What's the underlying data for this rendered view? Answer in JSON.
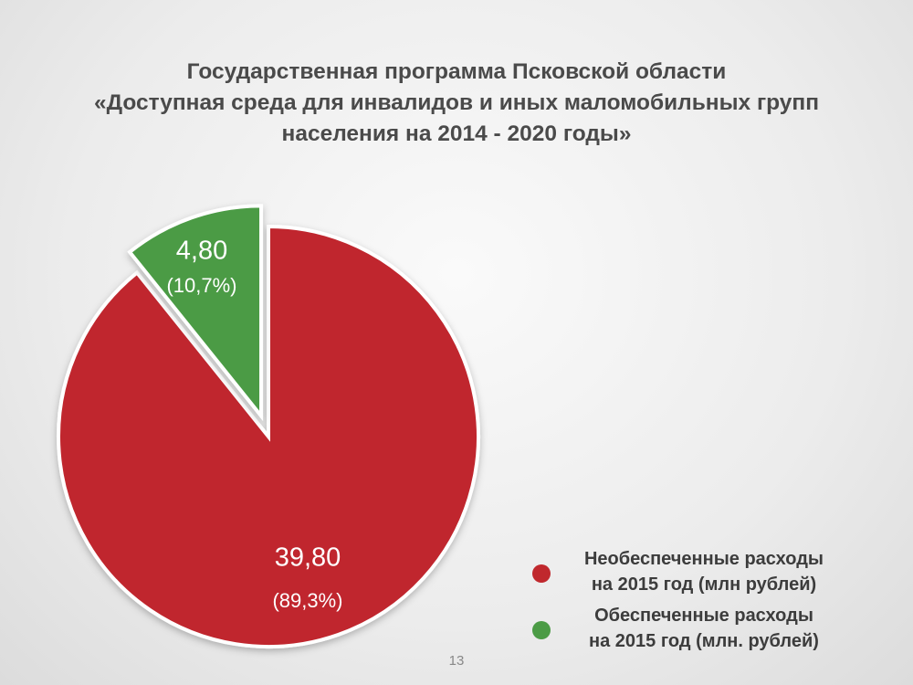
{
  "chart_data": {
    "type": "pie",
    "title_lines": [
      "Государственная программа Псковской области",
      "«Доступная среда для инвалидов и иных маломобильных групп",
      "населения на 2014 - 2020 годы»"
    ],
    "slices": [
      {
        "label": "Необеспеченные расходы\nна 2015 год  (млн рублей)",
        "value": 39.8,
        "value_label": "39,80",
        "percent_label": "(89,3%)",
        "color": "#c0282d",
        "exploded": false
      },
      {
        "label": "Обеспеченные расходы\nна 2015 год (млн. рублей)",
        "value": 4.8,
        "value_label": "4,80",
        "percent_label": "(10,7%)",
        "color": "#4b9b45",
        "exploded": true
      }
    ],
    "legend_position": "bottom-right"
  },
  "page_number": "13"
}
